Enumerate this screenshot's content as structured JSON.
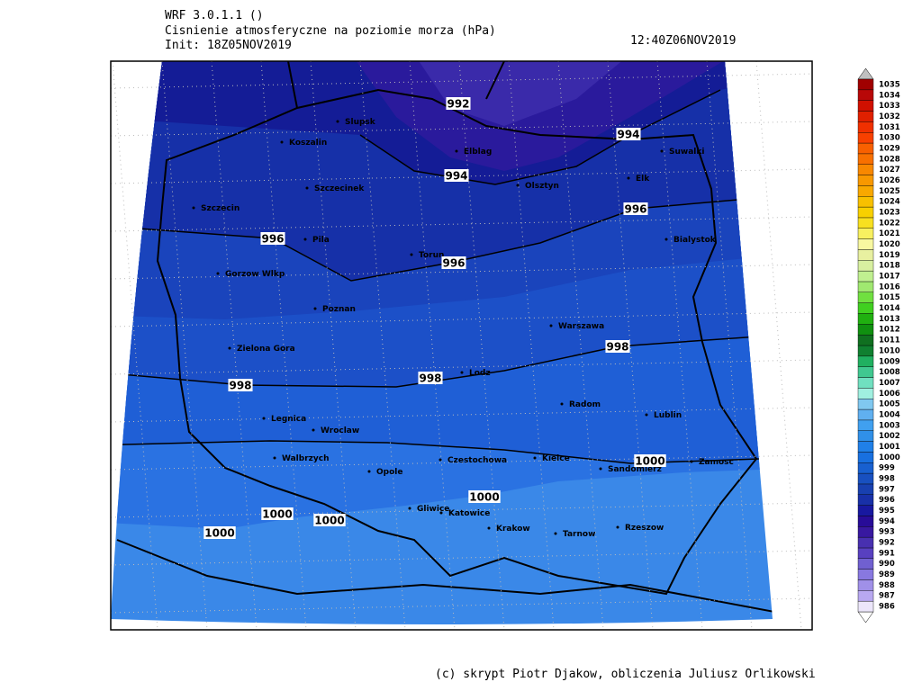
{
  "header": {
    "model": "WRF 3.0.1.1 ()",
    "title": "Cisnienie atmosferyczne na poziomie morza (hPa)",
    "init": "Init: 18Z05NOV2019",
    "valid": "12:40Z06NOV2019"
  },
  "footer": "(c) skrypt Piotr Djakow, obliczenia Juliusz Orlikowski",
  "cities": [
    "Slupsk",
    "Koszalin",
    "Elblag",
    "Suwalki",
    "Elk",
    "Olsztyn",
    "Szczecinek",
    "Szczecin",
    "Pila",
    "Bialystok",
    "Torun",
    "Gorzow Wlkp",
    "Poznan",
    "Warszawa",
    "Zielona Gora",
    "Lodz",
    "Radom",
    "Lublin",
    "Legnica",
    "Wroclaw",
    "Walbrzych",
    "Opole",
    "Czestochowa",
    "Kielce",
    "Sandomierz",
    "Zamosc",
    "Gliwice",
    "Katowice",
    "Krakow",
    "Tarnow",
    "Rzeszow"
  ],
  "contour_labels": [
    "992",
    "994",
    "994",
    "996",
    "996",
    "996",
    "998",
    "998",
    "998",
    "1000",
    "1000",
    "1000",
    "1000",
    "1000"
  ],
  "colorbar": {
    "levels": [
      986,
      987,
      988,
      989,
      990,
      991,
      992,
      993,
      994,
      995,
      996,
      997,
      998,
      999,
      1000,
      1001,
      1002,
      1003,
      1004,
      1005,
      1006,
      1007,
      1008,
      1009,
      1010,
      1011,
      1012,
      1013,
      1014,
      1015,
      1016,
      1017,
      1018,
      1019,
      1020,
      1021,
      1022,
      1023,
      1024,
      1025,
      1026,
      1027,
      1028,
      1029,
      1030,
      1031,
      1032,
      1033,
      1034,
      1035
    ],
    "colors": [
      "#ece6fa",
      "#b8a8f0",
      "#a090e8",
      "#8878e0",
      "#7060d0",
      "#5840c0",
      "#4830b0",
      "#3818a0",
      "#280c98",
      "#1818a0",
      "#1830a8",
      "#1840b0",
      "#1850c0",
      "#1860d0",
      "#1870e0",
      "#2080e8",
      "#3090e8",
      "#40a0f0",
      "#60b0f0",
      "#80c8f0",
      "#a0f0e0",
      "#70e0c0",
      "#40c890",
      "#20b060",
      "#108030",
      "#107020",
      "#109010",
      "#20b010",
      "#40d020",
      "#70e040",
      "#a0e870",
      "#c0f090",
      "#d8f0a0",
      "#e8f0a0",
      "#f8f8a0",
      "#f8f060",
      "#f8e020",
      "#f8d000",
      "#f8c000",
      "#f8a800",
      "#f89800",
      "#f88800",
      "#f87000",
      "#f86000",
      "#f84000",
      "#f03000",
      "#e02000",
      "#d01000",
      "#b80808",
      "#a00000"
    ]
  }
}
